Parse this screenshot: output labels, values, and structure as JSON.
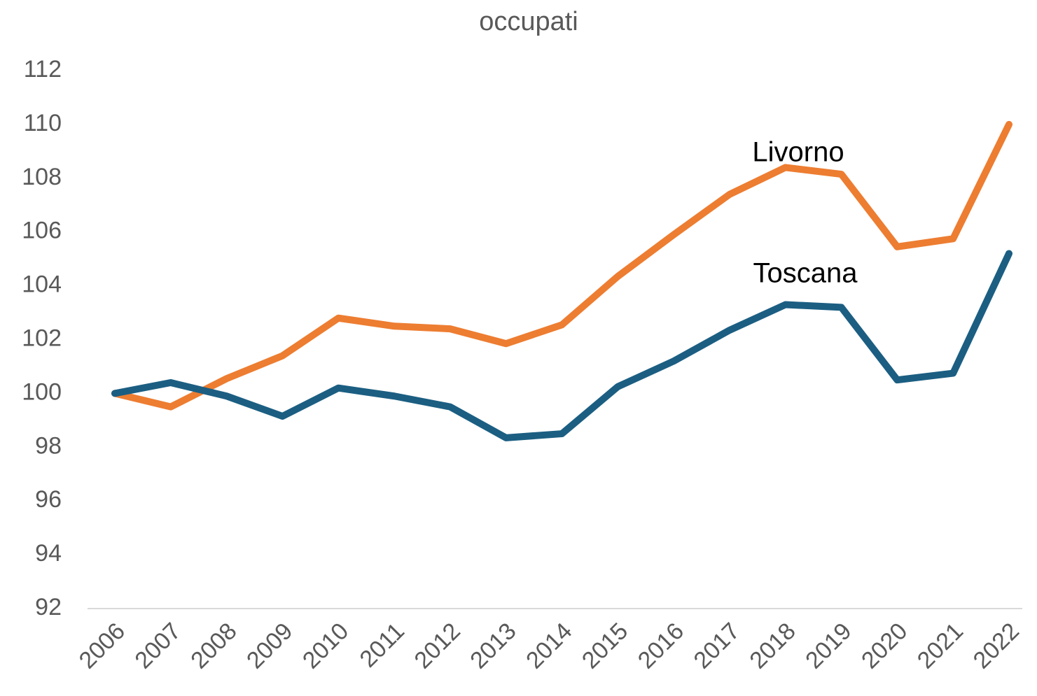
{
  "chart_data": {
    "type": "line",
    "title": "occupati",
    "categories": [
      "2006",
      "2007",
      "2008",
      "2009",
      "2010",
      "2011",
      "2012",
      "2013",
      "2014",
      "2015",
      "2016",
      "2017",
      "2018",
      "2019",
      "2020",
      "2021",
      "2022"
    ],
    "series": [
      {
        "name": "Livorno",
        "color": "#ED7D31",
        "values": [
          100,
          99.5,
          100.55,
          101.4,
          102.8,
          102.5,
          102.4,
          101.85,
          102.55,
          104.35,
          105.9,
          107.4,
          108.4,
          108.15,
          105.45,
          105.75,
          110.0
        ]
      },
      {
        "name": "Toscana",
        "color": "#1B5E82",
        "values": [
          100,
          100.4,
          99.9,
          99.15,
          100.2,
          99.9,
          99.5,
          98.35,
          98.5,
          100.25,
          101.2,
          102.35,
          103.3,
          103.2,
          100.5,
          100.75,
          105.2
        ]
      }
    ],
    "ylim": [
      92,
      112
    ],
    "yticks": [
      92,
      94,
      96,
      98,
      100,
      102,
      104,
      106,
      108,
      110,
      112
    ],
    "grid": false
  }
}
